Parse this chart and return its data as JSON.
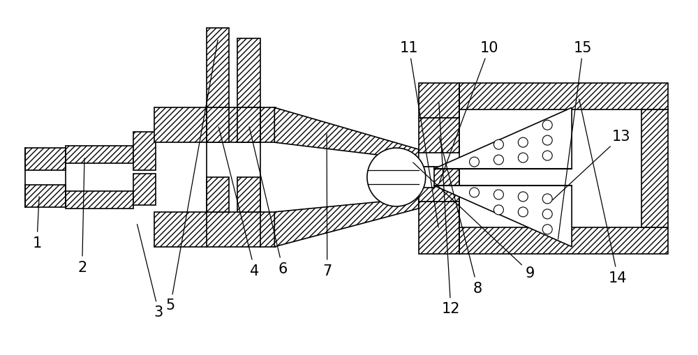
{
  "bg_color": "#ffffff",
  "line_color": "#000000",
  "lw": 1.2,
  "fs": 15,
  "figsize": [
    10.0,
    5.1
  ],
  "dpi": 100
}
